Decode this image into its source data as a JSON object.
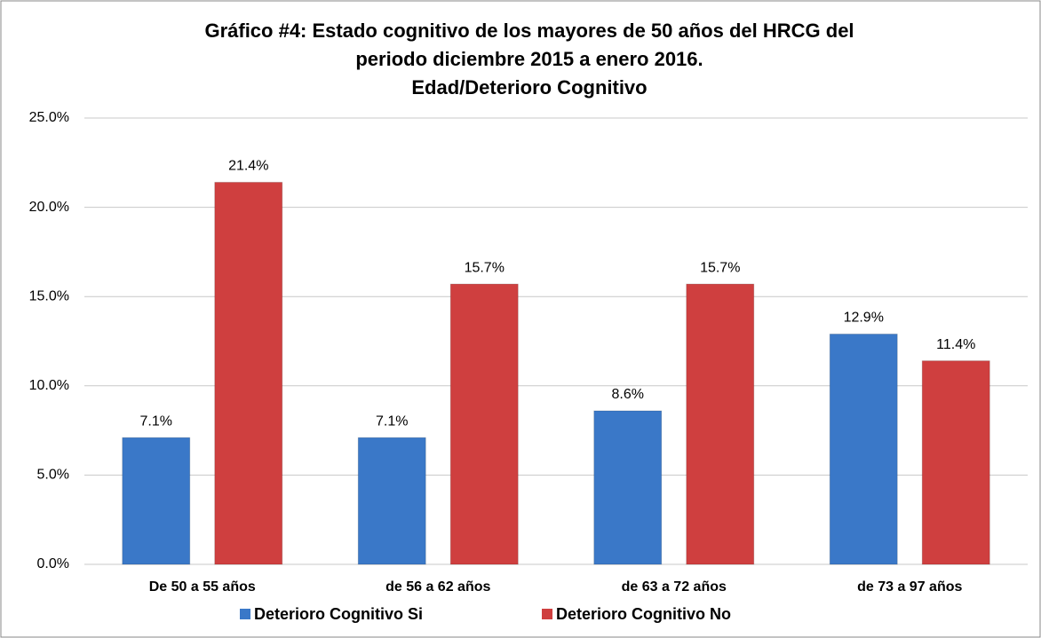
{
  "chart_data": {
    "type": "bar",
    "title": [
      "Gráfico #4: Estado cognitivo de los mayores de 50 años del HRCG del",
      "periodo diciembre 2015 a enero 2016.",
      "Edad/Deterioro Cognitivo"
    ],
    "categories": [
      "De 50 a 55 años",
      "de 56 a 62 años",
      "de 63 a 72 años",
      "de 73 a 97 años"
    ],
    "series": [
      {
        "name": "Deterioro Cognitivo Si",
        "color": "#3a78c8",
        "values": [
          7.1,
          7.1,
          8.6,
          12.9
        ],
        "value_labels": [
          "7.1%",
          "7.1%",
          "8.6%",
          "12.9%"
        ]
      },
      {
        "name": "Deterioro Cognitivo No",
        "color": "#cf3f3f",
        "values": [
          21.4,
          15.7,
          15.7,
          11.4
        ],
        "value_labels": [
          "21.4%",
          "15.7%",
          "15.7%",
          "11.4%"
        ]
      }
    ],
    "ylim": [
      0,
      25
    ],
    "yticks": [
      {
        "value": 0,
        "label": "0.0%"
      },
      {
        "value": 5,
        "label": "5.0%"
      },
      {
        "value": 10,
        "label": "10.0%"
      },
      {
        "value": 15,
        "label": "15.0%"
      },
      {
        "value": 20,
        "label": "20.0%"
      },
      {
        "value": 25,
        "label": "25.0%"
      }
    ],
    "grid": true,
    "legend": "bottom"
  }
}
